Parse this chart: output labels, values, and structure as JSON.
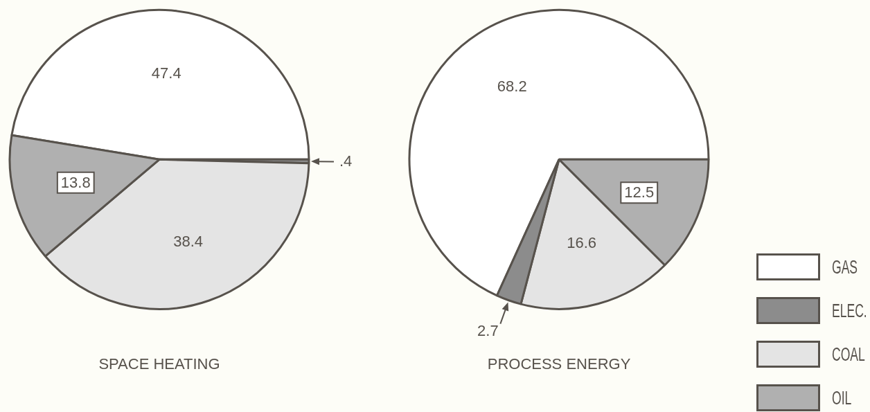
{
  "chart_data": [
    {
      "type": "pie",
      "title": "SPACE HEATING",
      "categories": [
        "GAS",
        "ELEC.",
        "COAL",
        "OIL"
      ],
      "values": [
        47.4,
        0.4,
        38.4,
        13.8
      ],
      "colors": [
        "#ffffff",
        "#8c8c8c",
        "#e4e4e4",
        "#b0b0b0"
      ],
      "value_labels": [
        "47.4",
        ".4",
        "38.4",
        "13.8"
      ],
      "legend": "right"
    },
    {
      "type": "pie",
      "title": "PROCESS ENERGY",
      "categories": [
        null,
        null,
        null,
        null
      ],
      "values": [
        68.2,
        12.5,
        16.6,
        2.7
      ],
      "colors": [
        "#ffffff",
        "#b0b0b0",
        "#e4e4e4",
        "#8c8c8c"
      ],
      "value_labels": [
        "68.2",
        "12.5",
        "16.6",
        "2.7"
      ]
    }
  ]
}
